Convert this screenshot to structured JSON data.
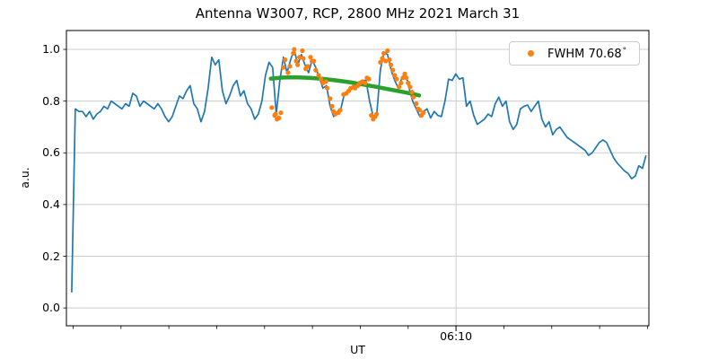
{
  "title": "Antenna W3007, RCP, 2800 MHz 2021 March 31",
  "axes": {
    "xlabel": "UT",
    "ylabel": "a.u."
  },
  "legend": {
    "label_text": "FWHM 70.68",
    "degree_symbol": "°"
  },
  "colors": {
    "signal": "#1f77b4",
    "samples": "#ff7f0e",
    "fit": "#2ca02c",
    "grid": "#cccccc",
    "spine": "#000000",
    "background": "#ffffff"
  },
  "chart_data": {
    "type": "line",
    "title": "Antenna W3007, RCP, 2800 MHz 2021 March 31",
    "xlabel": "UT",
    "ylabel": "a.u.",
    "grid": true,
    "x_axis": {
      "unit": "minutes after 00:00 UT",
      "xlim": [
        288.6,
        410.3
      ],
      "major_ticks": [
        {
          "minute": 370,
          "label": "06:10"
        }
      ],
      "minor_tick_minutes_start": 290,
      "minor_tick_step": 10,
      "minor_tick_end": 410
    },
    "y_axis": {
      "ylim": [
        -0.069,
        1.073
      ],
      "ticks": [
        0.0,
        0.2,
        0.4,
        0.6,
        0.8,
        1.0
      ],
      "tick_labels": [
        "0.0",
        "0.2",
        "0.4",
        "0.6",
        "0.8",
        "1.0"
      ]
    },
    "legend": {
      "position": "upper right",
      "entries": [
        {
          "label": "FWHM 70.68°",
          "marker": "circle",
          "color": "#ff7f0e"
        }
      ]
    },
    "series": [
      {
        "name": "signal",
        "type": "line",
        "color": "#1f77b4",
        "x0": 289.7,
        "dx": 0.75,
        "y": [
          0.06,
          0.77,
          0.76,
          0.76,
          0.74,
          0.76,
          0.73,
          0.75,
          0.76,
          0.78,
          0.77,
          0.8,
          0.79,
          0.78,
          0.77,
          0.79,
          0.78,
          0.83,
          0.82,
          0.78,
          0.8,
          0.79,
          0.78,
          0.77,
          0.79,
          0.77,
          0.74,
          0.72,
          0.74,
          0.78,
          0.82,
          0.81,
          0.84,
          0.86,
          0.79,
          0.77,
          0.72,
          0.76,
          0.85,
          0.97,
          0.94,
          0.96,
          0.84,
          0.79,
          0.82,
          0.86,
          0.88,
          0.82,
          0.84,
          0.79,
          0.77,
          0.73,
          0.75,
          0.8,
          0.9,
          0.95,
          0.93,
          0.75,
          0.88,
          0.97,
          0.91,
          0.96,
          1.0,
          0.94,
          0.98,
          0.94,
          0.91,
          0.96,
          0.93,
          0.89,
          0.85,
          0.86,
          0.78,
          0.74,
          0.76,
          0.77,
          0.83,
          0.84,
          0.85,
          0.86,
          0.87,
          0.88,
          0.88,
          0.8,
          0.74,
          0.75,
          0.92,
          0.99,
          0.98,
          0.92,
          0.88,
          0.85,
          0.89,
          0.91,
          0.85,
          0.8,
          0.77,
          0.74,
          0.76,
          0.77,
          0.735,
          0.76,
          0.745,
          0.74,
          0.8,
          0.885,
          0.88,
          0.905,
          0.885,
          0.89,
          0.78,
          0.8,
          0.745,
          0.71,
          0.72,
          0.73,
          0.75,
          0.74,
          0.79,
          0.815,
          0.78,
          0.8,
          0.72,
          0.69,
          0.71,
          0.77,
          0.78,
          0.785,
          0.76,
          0.78,
          0.8,
          0.73,
          0.7,
          0.72,
          0.67,
          0.69,
          0.7,
          0.68,
          0.66,
          0.65,
          0.64,
          0.63,
          0.62,
          0.61,
          0.59,
          0.6,
          0.62,
          0.64,
          0.65,
          0.64,
          0.61,
          0.58,
          0.56,
          0.545,
          0.53,
          0.52,
          0.5,
          0.51,
          0.55,
          0.54,
          0.59
        ]
      },
      {
        "name": "fit-samples",
        "type": "scatter",
        "color": "#ff7f0e",
        "points": [
          [
            331.5,
            0.775
          ],
          [
            332.1,
            0.745
          ],
          [
            332.3,
            0.75
          ],
          [
            332.6,
            0.73
          ],
          [
            333.0,
            0.735
          ],
          [
            333.4,
            0.755
          ],
          [
            333.9,
            0.93
          ],
          [
            334.3,
            0.96
          ],
          [
            334.9,
            0.91
          ],
          [
            335.3,
            0.935
          ],
          [
            336.0,
            0.985
          ],
          [
            336.2,
            1.0
          ],
          [
            336.6,
            0.955
          ],
          [
            336.9,
            0.94
          ],
          [
            337.3,
            0.97
          ],
          [
            337.9,
            0.995
          ],
          [
            338.1,
            0.965
          ],
          [
            338.6,
            0.925
          ],
          [
            339.0,
            0.935
          ],
          [
            339.6,
            0.97
          ],
          [
            339.9,
            0.955
          ],
          [
            340.3,
            0.955
          ],
          [
            340.7,
            0.92
          ],
          [
            341.3,
            0.9
          ],
          [
            341.8,
            0.885
          ],
          [
            342.2,
            0.87
          ],
          [
            342.8,
            0.875
          ],
          [
            343.1,
            0.85
          ],
          [
            343.7,
            0.81
          ],
          [
            344.1,
            0.78
          ],
          [
            344.4,
            0.76
          ],
          [
            344.8,
            0.75
          ],
          [
            345.4,
            0.755
          ],
          [
            345.8,
            0.765
          ],
          [
            346.5,
            0.825
          ],
          [
            347.1,
            0.83
          ],
          [
            347.6,
            0.84
          ],
          [
            348.0,
            0.85
          ],
          [
            348.6,
            0.855
          ],
          [
            348.9,
            0.85
          ],
          [
            349.5,
            0.86
          ],
          [
            349.9,
            0.87
          ],
          [
            350.4,
            0.875
          ],
          [
            351.0,
            0.87
          ],
          [
            351.4,
            0.89
          ],
          [
            351.8,
            0.885
          ],
          [
            352.3,
            0.745
          ],
          [
            352.7,
            0.73
          ],
          [
            353.1,
            0.74
          ],
          [
            353.4,
            0.75
          ],
          [
            354.2,
            0.95
          ],
          [
            354.6,
            0.965
          ],
          [
            354.9,
            0.985
          ],
          [
            355.3,
            0.955
          ],
          [
            355.7,
            0.995
          ],
          [
            356.1,
            0.96
          ],
          [
            356.4,
            0.94
          ],
          [
            356.8,
            0.92
          ],
          [
            357.2,
            0.9
          ],
          [
            357.6,
            0.885
          ],
          [
            358.1,
            0.855
          ],
          [
            358.5,
            0.87
          ],
          [
            358.9,
            0.89
          ],
          [
            359.3,
            0.905
          ],
          [
            359.6,
            0.89
          ],
          [
            360.0,
            0.87
          ],
          [
            360.4,
            0.855
          ],
          [
            360.8,
            0.835
          ],
          [
            361.1,
            0.815
          ],
          [
            361.7,
            0.79
          ],
          [
            362.1,
            0.77
          ],
          [
            362.4,
            0.765
          ],
          [
            362.8,
            0.745
          ],
          [
            363.2,
            0.755
          ]
        ]
      },
      {
        "name": "gaussian-fit",
        "type": "line",
        "color": "#2ca02c",
        "label": "FWHM 70.68°",
        "points": [
          [
            331.3,
            0.887
          ],
          [
            333.8,
            0.891
          ],
          [
            336.6,
            0.892
          ],
          [
            339.4,
            0.89
          ],
          [
            342.2,
            0.886
          ],
          [
            345.0,
            0.88
          ],
          [
            347.8,
            0.873
          ],
          [
            350.6,
            0.864
          ],
          [
            353.4,
            0.855
          ],
          [
            356.2,
            0.845
          ],
          [
            359.0,
            0.835
          ],
          [
            360.9,
            0.828
          ],
          [
            362.3,
            0.822
          ]
        ]
      }
    ]
  }
}
